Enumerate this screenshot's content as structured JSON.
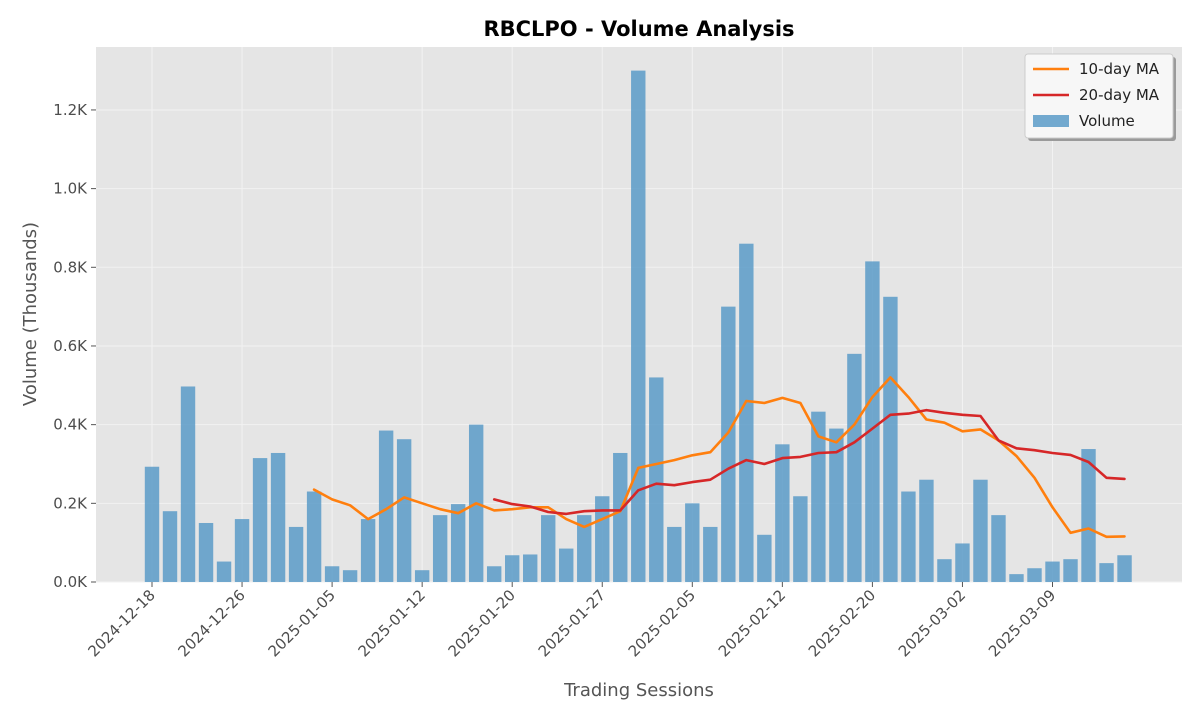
{
  "chart_data": {
    "type": "bar",
    "title": "RBCLPO - Volume Analysis",
    "xlabel": "Trading Sessions",
    "ylabel": "Volume (Thousands)",
    "ylim": [
      0,
      1360
    ],
    "y_ticks": [
      0,
      200,
      400,
      600,
      800,
      1000,
      1200
    ],
    "y_tick_labels": [
      "0.0K",
      "0.2K",
      "0.4K",
      "0.6K",
      "0.8K",
      "1.0K",
      "1.2K"
    ],
    "x_tick_labels": [
      {
        "label": "2024-12-18",
        "index": 0
      },
      {
        "label": "2024-12-26",
        "index": 5
      },
      {
        "label": "2025-01-05",
        "index": 10
      },
      {
        "label": "2025-01-12",
        "index": 15
      },
      {
        "label": "2025-01-20",
        "index": 20
      },
      {
        "label": "2025-01-27",
        "index": 25
      },
      {
        "label": "2025-02-05",
        "index": 30
      },
      {
        "label": "2025-02-12",
        "index": 35
      },
      {
        "label": "2025-02-20",
        "index": 40
      },
      {
        "label": "2025-03-02",
        "index": 45
      },
      {
        "label": "2025-03-09",
        "index": 50
      }
    ],
    "grid": true,
    "legend_position": "top-right",
    "colors": {
      "volume": "#5b9bc8",
      "ma10": "#ff7f0e",
      "ma20": "#d62728",
      "background": "#e5e5e5",
      "grid": "#f2f2f2"
    },
    "series": [
      {
        "name": "Volume",
        "kind": "bar",
        "values": [
          293,
          180,
          497,
          150,
          52,
          160,
          315,
          328,
          140,
          230,
          40,
          30,
          160,
          385,
          363,
          30,
          170,
          198,
          400,
          40,
          68,
          70,
          170,
          85,
          170,
          218,
          328,
          1300,
          520,
          140,
          200,
          140,
          700,
          860,
          120,
          350,
          218,
          433,
          390,
          580,
          815,
          725,
          230,
          260,
          58,
          98,
          260,
          170,
          20,
          35,
          52,
          58,
          338,
          48,
          68
        ]
      },
      {
        "name": "10-day MA",
        "kind": "line",
        "start_index": 9,
        "values": [
          235,
          210,
          195,
          160,
          185,
          215,
          200,
          185,
          175,
          200,
          182,
          185,
          190,
          190,
          160,
          140,
          160,
          180,
          290,
          300,
          310,
          322,
          330,
          380,
          460,
          455,
          468,
          455,
          370,
          355,
          400,
          470,
          520,
          470,
          413,
          405,
          383,
          388,
          360,
          320,
          265,
          190,
          125,
          136,
          115,
          116
        ]
      },
      {
        "name": "20-day MA",
        "kind": "line",
        "start_index": 19,
        "values": [
          210,
          198,
          192,
          178,
          173,
          180,
          182,
          182,
          233,
          250,
          246,
          254,
          260,
          288,
          310,
          300,
          315,
          318,
          328,
          330,
          355,
          390,
          425,
          428,
          437,
          430,
          425,
          422,
          360,
          340,
          335,
          328,
          323,
          305,
          265,
          262
        ]
      }
    ],
    "legend": [
      {
        "label": "10-day MA",
        "type": "line",
        "color_key": "ma10"
      },
      {
        "label": "20-day MA",
        "type": "line",
        "color_key": "ma20"
      },
      {
        "label": "Volume",
        "type": "patch",
        "color_key": "volume"
      }
    ]
  }
}
